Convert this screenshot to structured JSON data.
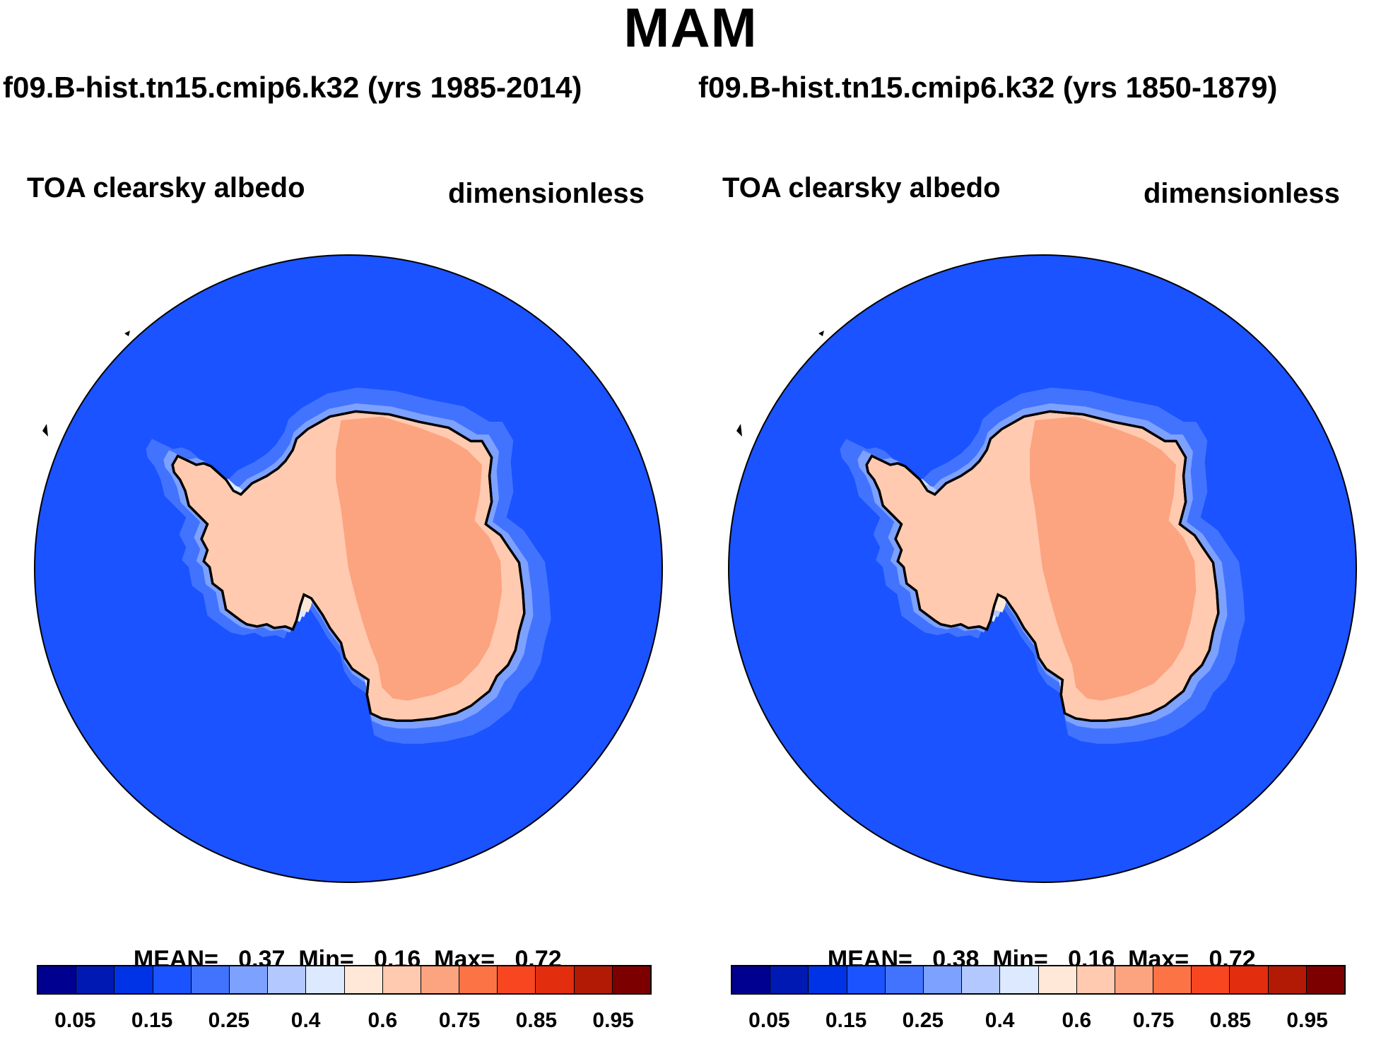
{
  "figure": {
    "title": "MAM",
    "colors": {
      "scale": [
        "#000090",
        "#0019b3",
        "#0033e6",
        "#1a53ff",
        "#4273ff",
        "#7da1ff",
        "#b2c8ff",
        "#dce9ff",
        "#ffe8d7",
        "#ffcab0",
        "#fca380",
        "#fc7346",
        "#f74620",
        "#e22d0f",
        "#b21a06",
        "#7d0000"
      ]
    }
  },
  "colorbar": {
    "tick_labels": [
      "0.05",
      "0.15",
      "0.25",
      "0.4",
      "0.6",
      "0.75",
      "0.85",
      "0.95"
    ],
    "levels": [
      0.05,
      0.1,
      0.15,
      0.2,
      0.25,
      0.3,
      0.4,
      0.5,
      0.6,
      0.7,
      0.75,
      0.8,
      0.85,
      0.9,
      0.95
    ],
    "fill_colors": [
      "#000090",
      "#0019b3",
      "#0033e6",
      "#1a53ff",
      "#4273ff",
      "#7da1ff",
      "#b2c8ff",
      "#dce9ff",
      "#ffe8d7",
      "#ffcab0",
      "#fca380",
      "#fc7346",
      "#f74620",
      "#e22d0f",
      "#b21a06",
      "#7d0000"
    ]
  },
  "panels": [
    {
      "run_title": "f09.B-hist.tn15.cmip6.k32 (yrs 1985-2014)",
      "left_label": "TOA clearsky albedo",
      "right_label": "dimensionless",
      "stats": {
        "mean_label": "MEAN=",
        "mean": "0.37",
        "min_label": "Min=",
        "min": "0.16",
        "max_label": "Max=",
        "max": "0.72"
      }
    },
    {
      "run_title": "f09.B-hist.tn15.cmip6.k32 (yrs 1850-1879)",
      "left_label": "TOA clearsky albedo",
      "right_label": "dimensionless",
      "stats": {
        "mean_label": "MEAN=",
        "mean": "0.38",
        "min_label": "Min=",
        "min": "0.16",
        "max_label": "Max=",
        "max": "0.72"
      }
    }
  ]
}
